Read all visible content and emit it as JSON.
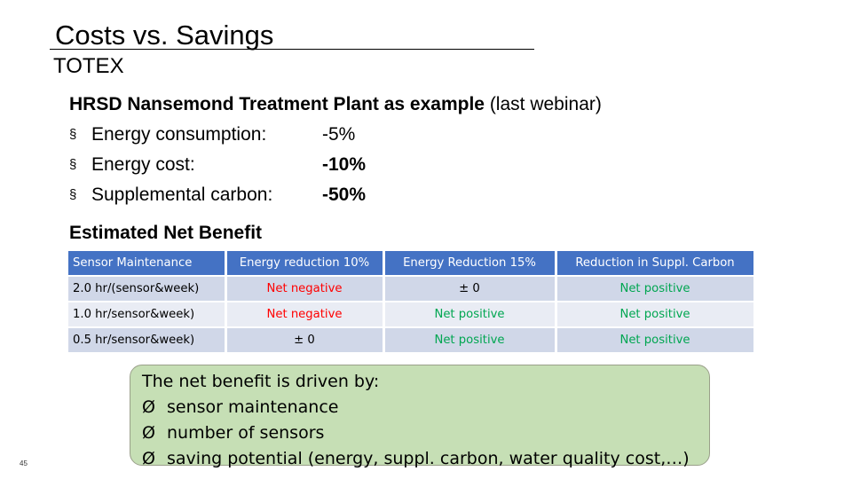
{
  "slide": {
    "title": "Costs vs. Savings",
    "subtitle": "TOTEX",
    "page_number": "45"
  },
  "example": {
    "heading_bold": "HRSD Nansemond Treatment Plant as example",
    "heading_normal": " (last webinar)",
    "bullet_glyph": "§",
    "bullets": [
      {
        "label": "Energy consumption:",
        "value": "-5%"
      },
      {
        "label": "Energy cost:",
        "value": "-10%"
      },
      {
        "label": "Supplemental carbon:",
        "value": "-50%"
      }
    ]
  },
  "net_benefit": {
    "title": "Estimated Net Benefit",
    "headers": [
      "Sensor Maintenance",
      "Energy reduction 10%",
      "Energy Reduction 15%",
      "Reduction in Suppl. Carbon"
    ],
    "rows": [
      {
        "maintenance": "2.0 hr/(sensor&week)",
        "energy10": "Net negative",
        "energy15": "± 0",
        "carbon": "Net positive"
      },
      {
        "maintenance": "1.0 hr/sensor&week)",
        "energy10": "Net negative",
        "energy15": "Net positive",
        "carbon": "Net positive"
      },
      {
        "maintenance": "0.5 hr/sensor&week)",
        "energy10": "± 0",
        "energy15": "Net positive",
        "carbon": "Net positive"
      }
    ],
    "colors": {
      "header_bg": "#4472c4",
      "negative": "#ff0000",
      "positive": "#00a651"
    }
  },
  "callout": {
    "heading": "The net benefit is driven by:",
    "arrow_glyph": "Ø",
    "items": [
      "sensor maintenance",
      "number of sensors",
      "saving potential (energy, suppl. carbon, water quality cost,…)"
    ],
    "background": "#c6dfb5"
  }
}
